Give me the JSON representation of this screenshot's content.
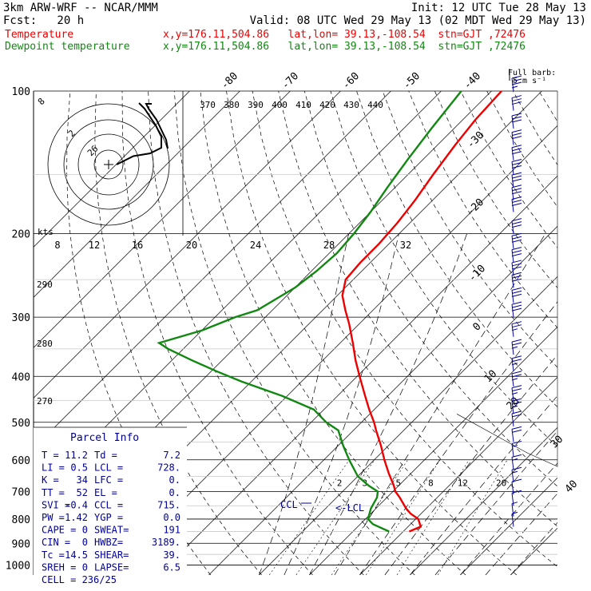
{
  "header": {
    "model": "3km ARW-WRF -- NCAR/MMM",
    "init": "Init: 12 UTC Tue 28 May 13",
    "fcst": "Fcst:   20 h",
    "valid": "Valid: 08 UTC Wed 29 May 13 (02 MDT Wed 29 May 13)",
    "temp_label": "Temperature",
    "temp_info": "x,y=176.11,504.86   lat,lon= 39.13,-108.54  stn=GJT ,72476",
    "dew_label": "Dewpoint temperature",
    "dew_info": "x,y=176.11,504.86   lat,lon= 39.13,-108.54  stn=GJT ,72476"
  },
  "colors": {
    "temperature": "#ee0000",
    "dewpoint": "#118811",
    "parcel_box": "#000099",
    "barbs": "#000099"
  },
  "chart_data": {
    "type": "line",
    "subtype": "skew-T log-P sounding",
    "pressure_levels": [
      "100",
      "200",
      "300",
      "400",
      "500",
      "600",
      "700",
      "800",
      "900",
      "1000"
    ],
    "top_temp_labels": [
      "-80",
      "-70",
      "-60",
      "-50",
      "-40"
    ],
    "side_temp_labels": [
      "-30",
      "-20",
      "-10",
      "0",
      "10",
      "20",
      "30",
      "40"
    ],
    "theta_labels": [
      "370",
      "380",
      "390",
      "400",
      "410",
      "420",
      "430",
      "440"
    ],
    "theta_side_labels": [
      "290",
      "280",
      "270"
    ],
    "mixing_ratio_labels": [
      "2",
      "3",
      "5",
      "8",
      "12",
      "20"
    ],
    "hodo_labels": [
      "8",
      "12",
      "16",
      "20",
      "24",
      "28",
      "32"
    ],
    "hodo_ring_labels": [
      "8",
      "2",
      "26"
    ],
    "kts_label": "kts",
    "barb_legend": [
      "Full barb:",
      "5 m s⁻¹"
    ],
    "ccl_label": "CCL",
    "lcl_label": "<-LCL",
    "temperature_profile": [
      {
        "p": 850,
        "t": 11.2
      },
      {
        "p": 830,
        "t": 12.5
      },
      {
        "p": 800,
        "t": 10.5
      },
      {
        "p": 780,
        "t": 8.0
      },
      {
        "p": 760,
        "t": 6.0
      },
      {
        "p": 720,
        "t": 2.5
      },
      {
        "p": 700,
        "t": 0.5
      },
      {
        "p": 680,
        "t": -1.0
      },
      {
        "p": 640,
        "t": -4.5
      },
      {
        "p": 600,
        "t": -8.0
      },
      {
        "p": 560,
        "t": -11.5
      },
      {
        "p": 520,
        "t": -15.5
      },
      {
        "p": 500,
        "t": -17.5
      },
      {
        "p": 470,
        "t": -21.0
      },
      {
        "p": 440,
        "t": -24.5
      },
      {
        "p": 400,
        "t": -29.5
      },
      {
        "p": 370,
        "t": -33.5
      },
      {
        "p": 340,
        "t": -37.5
      },
      {
        "p": 310,
        "t": -42.0
      },
      {
        "p": 290,
        "t": -45.5
      },
      {
        "p": 270,
        "t": -49.0
      },
      {
        "p": 250,
        "t": -51.5
      },
      {
        "p": 230,
        "t": -52.0
      },
      {
        "p": 210,
        "t": -52.0
      },
      {
        "p": 190,
        "t": -52.5
      },
      {
        "p": 170,
        "t": -53.5
      },
      {
        "p": 150,
        "t": -55.0
      },
      {
        "p": 130,
        "t": -56.5
      },
      {
        "p": 115,
        "t": -57.5
      },
      {
        "p": 100,
        "t": -58.0
      }
    ],
    "dewpoint_profile": [
      {
        "p": 850,
        "t": 7.2
      },
      {
        "p": 820,
        "t": 2.5
      },
      {
        "p": 800,
        "t": 0.5
      },
      {
        "p": 760,
        "t": -1.0
      },
      {
        "p": 720,
        "t": -2.0
      },
      {
        "p": 700,
        "t": -3.0
      },
      {
        "p": 680,
        "t": -6.0
      },
      {
        "p": 650,
        "t": -10.0
      },
      {
        "p": 600,
        "t": -15.0
      },
      {
        "p": 560,
        "t": -19.0
      },
      {
        "p": 520,
        "t": -23.0
      },
      {
        "p": 500,
        "t": -27.0
      },
      {
        "p": 470,
        "t": -32.0
      },
      {
        "p": 440,
        "t": -41.0
      },
      {
        "p": 410,
        "t": -52.0
      },
      {
        "p": 390,
        "t": -59.0
      },
      {
        "p": 370,
        "t": -66.0
      },
      {
        "p": 350,
        "t": -73.0
      },
      {
        "p": 340,
        "t": -76.0
      },
      {
        "p": 320,
        "t": -70.0
      },
      {
        "p": 300,
        "t": -66.0
      },
      {
        "p": 290,
        "t": -63.0
      },
      {
        "p": 260,
        "t": -60.0
      },
      {
        "p": 240,
        "t": -59.0
      },
      {
        "p": 220,
        "t": -58.5
      },
      {
        "p": 200,
        "t": -59.0
      },
      {
        "p": 180,
        "t": -60.0
      },
      {
        "p": 160,
        "t": -61.5
      },
      {
        "p": 140,
        "t": -63.0
      },
      {
        "p": 120,
        "t": -64.5
      },
      {
        "p": 100,
        "t": -66.0
      }
    ],
    "wind_barbs": [
      {
        "p": 100,
        "dir": 270,
        "spd": 35
      },
      {
        "p": 110,
        "dir": 270,
        "spd": 30
      },
      {
        "p": 120,
        "dir": 270,
        "spd": 30
      },
      {
        "p": 130,
        "dir": 270,
        "spd": 30
      },
      {
        "p": 140,
        "dir": 270,
        "spd": 30
      },
      {
        "p": 150,
        "dir": 270,
        "spd": 30
      },
      {
        "p": 160,
        "dir": 270,
        "spd": 30
      },
      {
        "p": 170,
        "dir": 270,
        "spd": 30
      },
      {
        "p": 180,
        "dir": 270,
        "spd": 30
      },
      {
        "p": 200,
        "dir": 265,
        "spd": 30
      },
      {
        "p": 215,
        "dir": 265,
        "spd": 30
      },
      {
        "p": 230,
        "dir": 260,
        "spd": 30
      },
      {
        "p": 245,
        "dir": 260,
        "spd": 30
      },
      {
        "p": 260,
        "dir": 255,
        "spd": 30
      },
      {
        "p": 280,
        "dir": 250,
        "spd": 30
      },
      {
        "p": 300,
        "dir": 250,
        "spd": 30
      },
      {
        "p": 330,
        "dir": 245,
        "spd": 25
      },
      {
        "p": 360,
        "dir": 240,
        "spd": 25
      },
      {
        "p": 390,
        "dir": 240,
        "spd": 25
      },
      {
        "p": 420,
        "dir": 235,
        "spd": 25
      },
      {
        "p": 450,
        "dir": 235,
        "spd": 25
      },
      {
        "p": 480,
        "dir": 230,
        "spd": 25
      },
      {
        "p": 510,
        "dir": 230,
        "spd": 20
      },
      {
        "p": 550,
        "dir": 230,
        "spd": 20
      },
      {
        "p": 590,
        "dir": 230,
        "spd": 15
      },
      {
        "p": 630,
        "dir": 225,
        "spd": 15
      },
      {
        "p": 670,
        "dir": 225,
        "spd": 15
      },
      {
        "p": 710,
        "dir": 220,
        "spd": 10
      },
      {
        "p": 750,
        "dir": 215,
        "spd": 10
      },
      {
        "p": 790,
        "dir": 200,
        "spd": 5
      },
      {
        "p": 830,
        "dir": 170,
        "spd": 5
      }
    ],
    "hodograph": [
      {
        "u": 0,
        "v": 0
      },
      {
        "u": 1,
        "v": 0.5
      },
      {
        "u": 3,
        "v": 1.5
      },
      {
        "u": 6,
        "v": 2
      },
      {
        "u": 8,
        "v": 3
      },
      {
        "u": 8,
        "v": 5
      },
      {
        "u": 7,
        "v": 7
      },
      {
        "u": 5,
        "v": 10
      },
      {
        "u": 4,
        "v": 11
      }
    ]
  },
  "parcel": {
    "title": "Parcel Info",
    "rows": [
      [
        "T  =",
        "11.2",
        "Td =",
        "7.2"
      ],
      [
        "LI =",
        "0.5",
        "LCL =",
        "728."
      ],
      [
        "K  =",
        "34",
        "LFC =",
        "0."
      ],
      [
        "TT =",
        "52",
        "EL =",
        "0."
      ],
      [
        "SVI =",
        "-0.4",
        "CCL =",
        "715."
      ],
      [
        "PW =",
        "1.42",
        "YGP =",
        "0.0"
      ],
      [
        "CAPE =",
        "0",
        "SWEAT=",
        "191"
      ],
      [
        "CIN =",
        "0",
        "HWBZ=",
        "3189."
      ],
      [
        "Tc =",
        "14.5",
        "SHEAR=",
        "39."
      ],
      [
        "SREH =",
        "0",
        "LAPSE=",
        "6.5"
      ]
    ],
    "cell": "CELL = 236/25"
  }
}
